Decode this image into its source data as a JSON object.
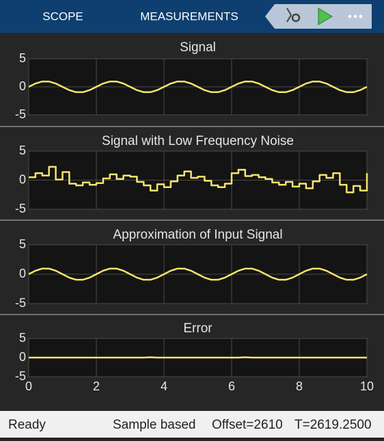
{
  "toolbar": {
    "tabs": [
      "SCOPE",
      "MEASUREMENTS"
    ]
  },
  "status_bar": {
    "state": "Ready",
    "mode": "Sample based",
    "offset": "Offset=2610",
    "time": "T=2619.2500"
  },
  "chart_data": [
    {
      "type": "line",
      "title": "Signal",
      "color": "#f7e56b",
      "grid": true,
      "show_xtick_labels": false,
      "x": [
        0,
        0.2,
        0.4,
        0.6,
        0.8,
        1,
        1.2,
        1.4,
        1.6,
        1.8,
        2,
        2.2,
        2.4,
        2.6,
        2.8,
        3,
        3.2,
        3.4,
        3.6,
        3.8,
        4,
        4.2,
        4.4,
        4.6,
        4.8,
        5,
        5.2,
        5.4,
        5.6,
        5.8,
        6,
        6.2,
        6.4,
        6.6,
        6.8,
        7,
        7.2,
        7.4,
        7.6,
        7.8,
        8,
        8.2,
        8.4,
        8.6,
        8.8,
        9,
        9.2,
        9.4,
        9.6,
        9.8,
        10
      ],
      "values": [
        0,
        0.59,
        0.95,
        0.95,
        0.59,
        0,
        -0.59,
        -0.95,
        -0.95,
        -0.59,
        0,
        0.59,
        0.95,
        0.95,
        0.59,
        0,
        -0.59,
        -0.95,
        -0.95,
        -0.59,
        0,
        0.59,
        0.95,
        0.95,
        0.59,
        0,
        -0.59,
        -0.95,
        -0.95,
        -0.59,
        0,
        0.59,
        0.95,
        0.95,
        0.59,
        0,
        -0.59,
        -0.95,
        -0.95,
        -0.59,
        0,
        0.59,
        0.95,
        0.95,
        0.59,
        0,
        -0.59,
        -0.95,
        -0.95,
        -0.59,
        0
      ],
      "xlim": [
        0,
        10
      ],
      "xticks": [
        0,
        2,
        4,
        6,
        8,
        10
      ],
      "ylim": [
        -5,
        5
      ],
      "yticks": [
        -5,
        0,
        5
      ]
    },
    {
      "type": "stairs",
      "title": "Signal with Low Frequency Noise",
      "color": "#f7e56b",
      "grid": true,
      "show_xtick_labels": false,
      "x": [
        0,
        0.2,
        0.4,
        0.6,
        0.8,
        1,
        1.2,
        1.4,
        1.6,
        1.8,
        2,
        2.2,
        2.4,
        2.6,
        2.8,
        3,
        3.2,
        3.4,
        3.6,
        3.8,
        4,
        4.2,
        4.4,
        4.6,
        4.8,
        5,
        5.2,
        5.4,
        5.6,
        5.8,
        6,
        6.2,
        6.4,
        6.6,
        6.8,
        7,
        7.2,
        7.4,
        7.6,
        7.8,
        8,
        8.2,
        8.4,
        8.6,
        8.8,
        9,
        9.2,
        9.4,
        9.6,
        9.8,
        10
      ],
      "values": [
        0.5,
        1.2,
        0.8,
        2.3,
        0.1,
        1.4,
        -0.6,
        -0.9,
        -0.4,
        -0.8,
        -0.5,
        0.3,
        1.0,
        0.2,
        0.8,
        0.6,
        -0.3,
        -0.9,
        -1.8,
        -0.7,
        -1.2,
        -0.2,
        0.8,
        1.5,
        0.4,
        0.6,
        -0.1,
        -0.9,
        -1.2,
        -0.6,
        1.2,
        1.8,
        0.7,
        0.9,
        0.5,
        0.2,
        -0.4,
        -0.8,
        -0.3,
        -1.1,
        -0.6,
        -1.4,
        -0.2,
        0.9,
        0.4,
        1.2,
        -0.8,
        -2.1,
        -1.0,
        -1.8,
        1.2
      ],
      "xlim": [
        0,
        10
      ],
      "xticks": [
        0,
        2,
        4,
        6,
        8,
        10
      ],
      "ylim": [
        -5,
        5
      ],
      "yticks": [
        -5,
        0,
        5
      ]
    },
    {
      "type": "line",
      "title": "Approximation of Input Signal",
      "color": "#f7e56b",
      "grid": true,
      "show_xtick_labels": false,
      "x": [
        0,
        0.2,
        0.4,
        0.6,
        0.8,
        1,
        1.2,
        1.4,
        1.6,
        1.8,
        2,
        2.2,
        2.4,
        2.6,
        2.8,
        3,
        3.2,
        3.4,
        3.6,
        3.8,
        4,
        4.2,
        4.4,
        4.6,
        4.8,
        5,
        5.2,
        5.4,
        5.6,
        5.8,
        6,
        6.2,
        6.4,
        6.6,
        6.8,
        7,
        7.2,
        7.4,
        7.6,
        7.8,
        8,
        8.2,
        8.4,
        8.6,
        8.8,
        9,
        9.2,
        9.4,
        9.6,
        9.8,
        10
      ],
      "values": [
        0,
        0.59,
        0.95,
        0.95,
        0.59,
        0,
        -0.59,
        -0.95,
        -0.95,
        -0.59,
        0,
        0.59,
        0.95,
        0.95,
        0.59,
        0,
        -0.59,
        -0.95,
        -0.95,
        -0.59,
        0,
        0.59,
        0.95,
        0.95,
        0.59,
        0,
        -0.59,
        -0.95,
        -0.95,
        -0.59,
        0,
        0.59,
        0.95,
        0.95,
        0.59,
        0,
        -0.59,
        -0.95,
        -0.95,
        -0.59,
        0,
        0.59,
        0.95,
        0.95,
        0.59,
        0,
        -0.59,
        -0.95,
        -0.95,
        -0.59,
        0
      ],
      "xlim": [
        0,
        10
      ],
      "xticks": [
        0,
        2,
        4,
        6,
        8,
        10
      ],
      "ylim": [
        -5,
        5
      ],
      "yticks": [
        -5,
        0,
        5
      ]
    },
    {
      "type": "line",
      "title": "Error",
      "color": "#f7e56b",
      "grid": true,
      "show_xtick_labels": true,
      "x": [
        0,
        0.2,
        0.4,
        0.6,
        0.8,
        1,
        1.2,
        1.4,
        1.6,
        1.8,
        2,
        2.2,
        2.4,
        2.6,
        2.8,
        3,
        3.2,
        3.4,
        3.6,
        3.8,
        4,
        4.2,
        4.4,
        4.6,
        4.8,
        5,
        5.2,
        5.4,
        5.6,
        5.8,
        6,
        6.2,
        6.4,
        6.6,
        6.8,
        7,
        7.2,
        7.4,
        7.6,
        7.8,
        8,
        8.2,
        8.4,
        8.6,
        8.8,
        9,
        9.2,
        9.4,
        9.6,
        9.8,
        10
      ],
      "values": [
        0,
        0,
        0,
        0,
        0,
        0,
        0,
        0,
        0,
        0,
        0,
        0,
        0,
        0,
        0,
        0,
        0,
        0,
        0.1,
        0,
        0,
        0,
        0,
        0,
        0,
        0,
        0,
        0,
        0,
        0,
        0,
        0,
        0.1,
        0,
        0,
        0,
        0,
        0,
        0,
        0,
        0,
        0,
        0,
        0,
        0,
        0,
        0,
        0,
        0,
        0,
        0
      ],
      "xlim": [
        0,
        10
      ],
      "xticks": [
        0,
        2,
        4,
        6,
        8,
        10
      ],
      "ylim": [
        -5,
        5
      ],
      "yticks": [
        -5,
        0,
        5
      ]
    }
  ]
}
